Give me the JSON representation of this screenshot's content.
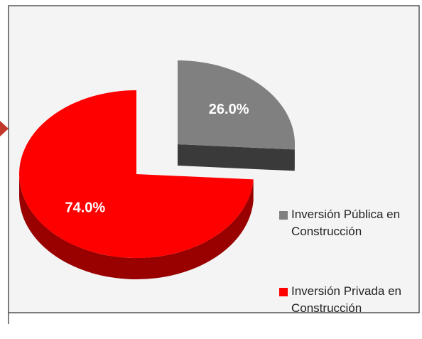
{
  "chart_data": {
    "type": "pie",
    "categories": [
      "Inversión Pública en Construcción",
      "Inversión Privada en Construcción"
    ],
    "values": [
      26,
      74
    ],
    "value_labels": [
      "26.0%",
      "74.0%"
    ],
    "colors": [
      "#808080",
      "#ff0000"
    ]
  }
}
